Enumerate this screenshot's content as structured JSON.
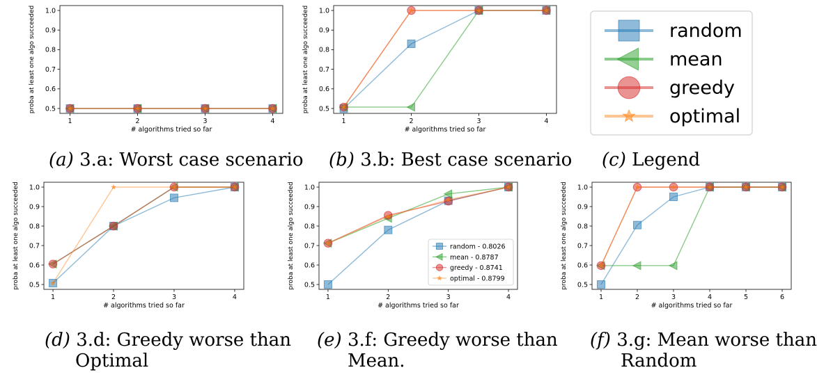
{
  "colors": {
    "random": "#1f77b4",
    "mean": "#2ca02c",
    "greedy": "#d62728",
    "optimal": "#ff7f0e",
    "axis": "#000000"
  },
  "legend": {
    "entries": [
      {
        "key": "random",
        "marker": "square",
        "label": "random"
      },
      {
        "key": "mean",
        "marker": "triangle-left",
        "label": "mean"
      },
      {
        "key": "greedy",
        "marker": "circle",
        "label": "greedy"
      },
      {
        "key": "optimal",
        "marker": "star",
        "label": "optimal"
      }
    ]
  },
  "captions": {
    "a": {
      "label": "(a)",
      "text": "3.a: Worst case scenario"
    },
    "b": {
      "label": "(b)",
      "text": "3.b: Best case scenario"
    },
    "c": {
      "label": "(c)",
      "text": "Legend"
    },
    "d": {
      "label": "(d)",
      "line1": "3.d:  Greedy worse than",
      "line2": "Optimal"
    },
    "e": {
      "label": "(e)",
      "line1": "3.f:  Greedy worse than",
      "line2": "Mean."
    },
    "f": {
      "label": "(f)",
      "line1": "3.g:   Mean worse than",
      "line2": "Random"
    }
  },
  "chart_data": [
    {
      "id": "a",
      "type": "line",
      "xlabel": "# algorithms tried so far",
      "ylabel": "proba at least one algo succeeded",
      "xlim": [
        0.85,
        4.15
      ],
      "ylim": [
        0.475,
        1.025
      ],
      "xticks": [
        1,
        2,
        3,
        4
      ],
      "yticks": [
        0.5,
        0.6,
        0.7,
        0.8,
        0.9,
        1.0
      ],
      "ytick_labels": [
        "0.5",
        "0.6",
        "0.7",
        "0.8",
        "0.9",
        "1.0"
      ],
      "series": [
        {
          "name": "random",
          "x": [
            1,
            2,
            3,
            4
          ],
          "y": [
            0.5,
            0.5,
            0.5,
            0.5
          ]
        },
        {
          "name": "mean",
          "x": [
            1,
            2,
            3,
            4
          ],
          "y": [
            0.5,
            0.5,
            0.5,
            0.5
          ]
        },
        {
          "name": "greedy",
          "x": [
            1,
            2,
            3,
            4
          ],
          "y": [
            0.5,
            0.5,
            0.5,
            0.5
          ]
        },
        {
          "name": "optimal",
          "x": [
            1,
            2,
            3,
            4
          ],
          "y": [
            0.5,
            0.5,
            0.5,
            0.5
          ]
        }
      ]
    },
    {
      "id": "b",
      "type": "line",
      "xlabel": "# algorithms tried so far",
      "ylabel": "proba at least one algo succeeded",
      "xlim": [
        0.85,
        4.15
      ],
      "ylim": [
        0.475,
        1.025
      ],
      "xticks": [
        1,
        2,
        3,
        4
      ],
      "yticks": [
        0.5,
        0.6,
        0.7,
        0.8,
        0.9,
        1.0
      ],
      "ytick_labels": [
        "0.5",
        "0.6",
        "0.7",
        "0.8",
        "0.9",
        "1.0"
      ],
      "series": [
        {
          "name": "random",
          "x": [
            1,
            2,
            3,
            4
          ],
          "y": [
            0.5,
            0.83,
            1.0,
            1.0
          ]
        },
        {
          "name": "mean",
          "x": [
            1,
            2,
            3,
            4
          ],
          "y": [
            0.507,
            0.507,
            1.0,
            1.0
          ]
        },
        {
          "name": "greedy",
          "x": [
            1,
            2,
            3,
            4
          ],
          "y": [
            0.507,
            1.0,
            1.0,
            1.0
          ]
        },
        {
          "name": "optimal",
          "x": [
            1,
            2,
            3,
            4
          ],
          "y": [
            0.507,
            1.0,
            1.0,
            1.0
          ]
        }
      ]
    },
    {
      "id": "d",
      "type": "line",
      "xlabel": "# algorithms tried so far",
      "ylabel": "proba at least one algo succeeded",
      "xlim": [
        0.85,
        4.15
      ],
      "ylim": [
        0.475,
        1.025
      ],
      "xticks": [
        1,
        2,
        3,
        4
      ],
      "yticks": [
        0.5,
        0.6,
        0.7,
        0.8,
        0.9,
        1.0
      ],
      "ytick_labels": [
        "0.5",
        "0.6",
        "0.7",
        "0.8",
        "0.9",
        "1.0"
      ],
      "series": [
        {
          "name": "random",
          "x": [
            1,
            2,
            3,
            4
          ],
          "y": [
            0.507,
            0.8,
            0.945,
            1.0
          ]
        },
        {
          "name": "mean",
          "x": [
            1,
            2,
            3,
            4
          ],
          "y": [
            0.605,
            0.8,
            1.0,
            1.0
          ]
        },
        {
          "name": "greedy",
          "x": [
            1,
            2,
            3,
            4
          ],
          "y": [
            0.605,
            0.8,
            1.0,
            1.0
          ]
        },
        {
          "name": "optimal",
          "x": [
            1,
            2,
            3,
            4
          ],
          "y": [
            0.507,
            1.0,
            1.0,
            1.0
          ]
        }
      ]
    },
    {
      "id": "e",
      "type": "line",
      "xlabel": "# algorithms tried so far",
      "ylabel": "proba at least one algo succeeded",
      "xlim": [
        0.85,
        4.15
      ],
      "ylim": [
        0.475,
        1.025
      ],
      "xticks": [
        1,
        2,
        3,
        4
      ],
      "yticks": [
        0.5,
        0.6,
        0.7,
        0.8,
        0.9,
        1.0
      ],
      "ytick_labels": [
        "0.5",
        "0.6",
        "0.7",
        "0.8",
        "0.9",
        "1.0"
      ],
      "legend": {
        "placement": "lower-right",
        "entries": [
          {
            "key": "random",
            "marker": "square",
            "label": "random - 0.8026"
          },
          {
            "key": "mean",
            "marker": "triangle-left",
            "label": "mean - 0.8787"
          },
          {
            "key": "greedy",
            "marker": "circle",
            "label": "greedy - 0.8741"
          },
          {
            "key": "optimal",
            "marker": "star",
            "label": "optimal - 0.8799"
          }
        ]
      },
      "series": [
        {
          "name": "random",
          "x": [
            1,
            2,
            3,
            4
          ],
          "y": [
            0.5,
            0.78,
            0.93,
            1.0
          ]
        },
        {
          "name": "mean",
          "x": [
            1,
            2,
            3,
            4
          ],
          "y": [
            0.712,
            0.84,
            0.965,
            1.0
          ]
        },
        {
          "name": "greedy",
          "x": [
            1,
            2,
            3,
            4
          ],
          "y": [
            0.712,
            0.855,
            0.928,
            1.0
          ]
        },
        {
          "name": "optimal",
          "x": [
            1,
            2,
            3,
            4
          ],
          "y": [
            0.712,
            0.85,
            0.935,
            1.0
          ]
        }
      ]
    },
    {
      "id": "f",
      "type": "line",
      "xlabel": "# algorithms tried so far",
      "ylabel": "proba at least one algo succeeded",
      "xlim": [
        0.75,
        6.25
      ],
      "ylim": [
        0.475,
        1.025
      ],
      "xticks": [
        1,
        2,
        3,
        4,
        5,
        6
      ],
      "yticks": [
        0.5,
        0.6,
        0.7,
        0.8,
        0.9,
        1.0
      ],
      "ytick_labels": [
        "0.5",
        "0.6",
        "0.7",
        "0.8",
        "0.9",
        "1.0"
      ],
      "series": [
        {
          "name": "random",
          "x": [
            1,
            2,
            3,
            4,
            5,
            6
          ],
          "y": [
            0.5,
            0.805,
            0.95,
            1.0,
            1.0,
            1.0
          ]
        },
        {
          "name": "mean",
          "x": [
            1,
            2,
            3,
            4,
            5,
            6
          ],
          "y": [
            0.597,
            0.597,
            0.597,
            1.0,
            1.0,
            1.0
          ]
        },
        {
          "name": "greedy",
          "x": [
            1,
            2,
            3,
            4,
            5,
            6
          ],
          "y": [
            0.597,
            1.0,
            1.0,
            1.0,
            1.0,
            1.0
          ]
        },
        {
          "name": "optimal",
          "x": [
            1,
            2,
            3,
            4,
            5,
            6
          ],
          "y": [
            0.597,
            1.0,
            1.0,
            1.0,
            1.0,
            1.0
          ]
        }
      ]
    }
  ]
}
